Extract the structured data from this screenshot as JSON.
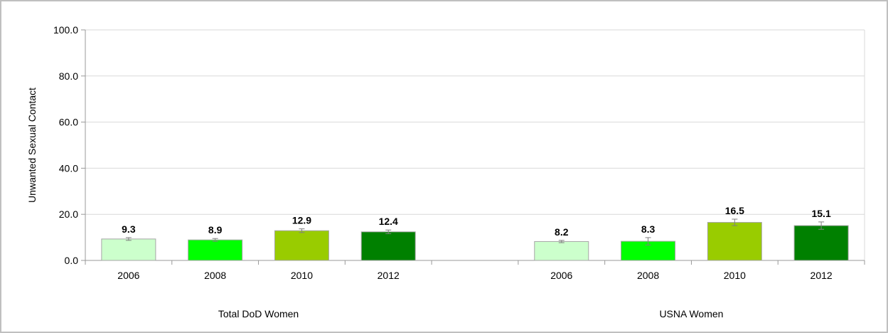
{
  "chart_data": {
    "type": "bar",
    "ylabel": "Unwanted  Sexual Contact",
    "ylim": [
      0,
      100
    ],
    "y_ticks": [
      "0.0",
      "20.0",
      "40.0",
      "60.0",
      "80.0",
      "100.0"
    ],
    "y_tick_values": [
      0,
      20,
      40,
      60,
      80,
      100
    ],
    "grid": true,
    "groups": [
      {
        "label": "Total DoD Women",
        "bars": [
          {
            "category": "2006",
            "value": 9.3,
            "label": "9.3",
            "error": 0.6
          },
          {
            "category": "2008",
            "value": 8.9,
            "label": "8.9",
            "error": 0.6
          },
          {
            "category": "2010",
            "value": 12.9,
            "label": "12.9",
            "error": 0.8
          },
          {
            "category": "2012",
            "value": 12.4,
            "label": "12.4",
            "error": 0.8
          }
        ]
      },
      {
        "label": "USNA Women",
        "bars": [
          {
            "category": "2006",
            "value": 8.2,
            "label": "8.2",
            "error": 0.5
          },
          {
            "category": "2008",
            "value": 8.3,
            "label": "8.3",
            "error": 1.6
          },
          {
            "category": "2010",
            "value": 16.5,
            "label": "16.5",
            "error": 1.4
          },
          {
            "category": "2012",
            "value": 15.1,
            "label": "15.1",
            "error": 1.6
          }
        ]
      }
    ],
    "bar_colors": [
      "#ccffcc",
      "#00ff00",
      "#99cc00",
      "#008000"
    ]
  }
}
